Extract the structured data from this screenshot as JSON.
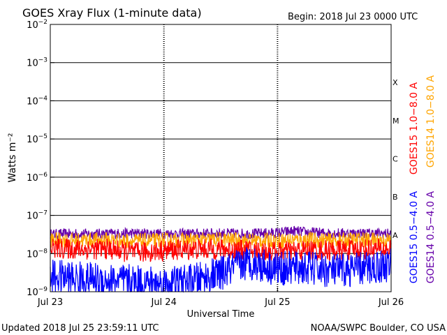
{
  "header": {
    "title": "GOES Xray Flux (1-minute data)",
    "begin": "Begin:  2018 Jul 23 0000 UTC"
  },
  "footer": {
    "updated": "Updated 2018 Jul 25 23:59:11 UTC",
    "credit": "NOAA/SWPC Boulder, CO USA"
  },
  "chart_data": {
    "type": "line",
    "title": "GOES Xray Flux (1-minute data)",
    "xlabel": "Universal Time",
    "ylabel": "Watts m⁻²",
    "y_scale": "log",
    "ylim": [
      1e-09,
      0.01
    ],
    "xlim_days": [
      0,
      3
    ],
    "x_ticks": [
      {
        "day": 0,
        "label": "Jul 23"
      },
      {
        "day": 1,
        "label": "Jul 24"
      },
      {
        "day": 2,
        "label": "Jul 25"
      },
      {
        "day": 3,
        "label": "Jul 26"
      }
    ],
    "y_ticks": [
      {
        "exp": -9,
        "label": "10",
        "sup": "−9"
      },
      {
        "exp": -8,
        "label": "10",
        "sup": "−8"
      },
      {
        "exp": -7,
        "label": "10",
        "sup": "−7"
      },
      {
        "exp": -6,
        "label": "10",
        "sup": "−6"
      },
      {
        "exp": -5,
        "label": "10",
        "sup": "−5"
      },
      {
        "exp": -4,
        "label": "10",
        "sup": "−4"
      },
      {
        "exp": -3,
        "label": "10",
        "sup": "−3"
      },
      {
        "exp": -2,
        "label": "10",
        "sup": "−2"
      }
    ],
    "flare_classes": [
      {
        "label": "X",
        "exp": -4
      },
      {
        "label": "M",
        "exp": -5
      },
      {
        "label": "C",
        "exp": -6
      },
      {
        "label": "B",
        "exp": -7
      },
      {
        "label": "A",
        "exp": -8
      }
    ],
    "legend": [
      {
        "label": "GOES15 1.0−8.0 A",
        "color": "#ff0000"
      },
      {
        "label": "GOES14 1.0−8.0 A",
        "color": "#ffa500"
      },
      {
        "label": "GOES15 0.5−4.0 A",
        "color": "#0000ff"
      },
      {
        "label": "GOES14 0.5−4.0 A",
        "color": "#6600aa"
      }
    ],
    "series": [
      {
        "name": "GOES14 0.5−4.0 A",
        "color": "#6600aa",
        "x": [
          0,
          0.25,
          0.5,
          0.75,
          1,
          1.25,
          1.5,
          1.75,
          2,
          2.15,
          2.25,
          2.5,
          2.75,
          3
        ],
        "y": [
          3.2e-08,
          3.3e-08,
          3.3e-08,
          3.4e-08,
          3.3e-08,
          3.3e-08,
          3.4e-08,
          3.3e-08,
          3.5e-08,
          3.9e-08,
          3.6e-08,
          3.4e-08,
          3.4e-08,
          3.3e-08
        ],
        "noise": 0.06
      },
      {
        "name": "GOES14 1.0−8.0 A",
        "color": "#ffa500",
        "x": [
          0,
          0.25,
          0.5,
          0.75,
          1,
          1.25,
          1.5,
          1.75,
          2,
          2.25,
          2.5,
          2.75,
          3
        ],
        "y": [
          2.3e-08,
          2.2e-08,
          2.3e-08,
          2.1e-08,
          2.2e-08,
          2.2e-08,
          2.3e-08,
          2.2e-08,
          2.2e-08,
          2.3e-08,
          2.2e-08,
          2.3e-08,
          2.2e-08
        ],
        "noise": 0.09
      },
      {
        "name": "GOES15 1.0−8.0 A",
        "color": "#ff0000",
        "x": [
          0,
          0.25,
          0.5,
          0.75,
          1,
          1.25,
          1.5,
          1.75,
          2,
          2.25,
          2.5,
          2.75,
          3
        ],
        "y": [
          1.4e-08,
          1.3e-08,
          1.3e-08,
          1.05e-08,
          1.2e-08,
          1.3e-08,
          1.3e-08,
          1.2e-08,
          1.1e-08,
          1.2e-08,
          1.2e-08,
          1.3e-08,
          1.3e-08
        ],
        "noise": 0.12
      },
      {
        "name": "GOES15 0.5−4.0 A",
        "color": "#0000ff",
        "x": [
          0,
          0.25,
          0.5,
          0.75,
          1,
          1.25,
          1.5,
          1.75,
          2,
          2.25,
          2.5,
          2.75,
          3
        ],
        "y": [
          2.5e-09,
          2.2e-09,
          2e-09,
          1.8e-09,
          1.6e-09,
          1.9e-09,
          3e-09,
          6e-09,
          4e-09,
          4.2e-09,
          3.5e-09,
          4e-09,
          5e-09
        ],
        "noise": 0.2
      }
    ]
  }
}
